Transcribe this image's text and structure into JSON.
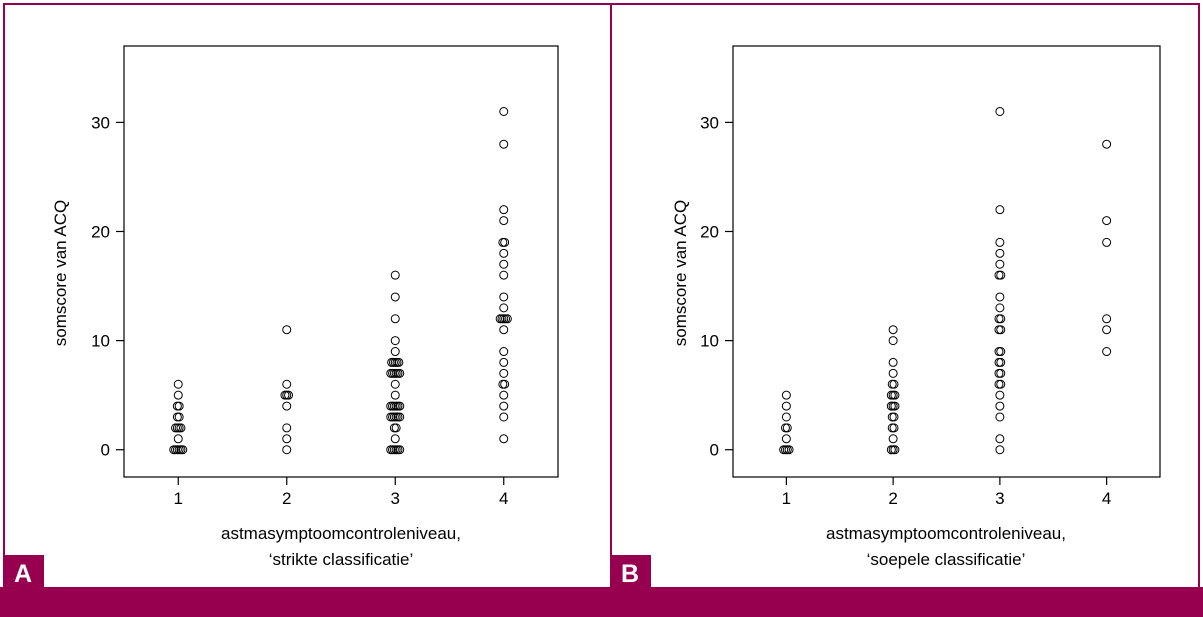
{
  "theme": {
    "accent": "#96004f",
    "ink": "#000000",
    "background": "#ffffff"
  },
  "panels": [
    {
      "badge": "A",
      "xlabel_line1": "astmasymptoomcontroleniveau,",
      "xlabel_line2": "‘strikte classificatie’",
      "ylabel": "somscore van ACQ"
    },
    {
      "badge": "B",
      "xlabel_line1": "astmasymptoomcontroleniveau,",
      "xlabel_line2": "‘soepele classificatie’",
      "ylabel": "somscore van ACQ"
    }
  ],
  "chart_data": [
    {
      "type": "scatter",
      "title": "",
      "xlabel": "astmasymptoomcontroleniveau, ‘strikte classificatie’",
      "ylabel": "somscore van ACQ",
      "x_ticks": [
        "1",
        "2",
        "3",
        "4"
      ],
      "y_ticks": [
        "0",
        "10",
        "20",
        "30"
      ],
      "xlim": [
        0.5,
        4.5
      ],
      "ylim": [
        -2.5,
        37
      ],
      "grid": false,
      "points": [
        {
          "x": 1,
          "y": 0
        },
        {
          "x": 1,
          "y": 0
        },
        {
          "x": 1,
          "y": 0
        },
        {
          "x": 1,
          "y": 0
        },
        {
          "x": 1,
          "y": 0
        },
        {
          "x": 1,
          "y": 0
        },
        {
          "x": 1,
          "y": 1
        },
        {
          "x": 1,
          "y": 2
        },
        {
          "x": 1,
          "y": 2
        },
        {
          "x": 1,
          "y": 2
        },
        {
          "x": 1,
          "y": 2
        },
        {
          "x": 1,
          "y": 3
        },
        {
          "x": 1,
          "y": 3
        },
        {
          "x": 1,
          "y": 4
        },
        {
          "x": 1,
          "y": 4
        },
        {
          "x": 1,
          "y": 5
        },
        {
          "x": 1,
          "y": 6
        },
        {
          "x": 2,
          "y": 0
        },
        {
          "x": 2,
          "y": 1
        },
        {
          "x": 2,
          "y": 2
        },
        {
          "x": 2,
          "y": 4
        },
        {
          "x": 2,
          "y": 5
        },
        {
          "x": 2,
          "y": 5
        },
        {
          "x": 2,
          "y": 5
        },
        {
          "x": 2,
          "y": 6
        },
        {
          "x": 2,
          "y": 11
        },
        {
          "x": 3,
          "y": 0
        },
        {
          "x": 3,
          "y": 0
        },
        {
          "x": 3,
          "y": 0
        },
        {
          "x": 3,
          "y": 0
        },
        {
          "x": 3,
          "y": 0
        },
        {
          "x": 3,
          "y": 0
        },
        {
          "x": 3,
          "y": 1
        },
        {
          "x": 3,
          "y": 2
        },
        {
          "x": 3,
          "y": 2
        },
        {
          "x": 3,
          "y": 3
        },
        {
          "x": 3,
          "y": 3
        },
        {
          "x": 3,
          "y": 3
        },
        {
          "x": 3,
          "y": 3
        },
        {
          "x": 3,
          "y": 3
        },
        {
          "x": 3,
          "y": 3
        },
        {
          "x": 3,
          "y": 4
        },
        {
          "x": 3,
          "y": 4
        },
        {
          "x": 3,
          "y": 4
        },
        {
          "x": 3,
          "y": 4
        },
        {
          "x": 3,
          "y": 4
        },
        {
          "x": 3,
          "y": 4
        },
        {
          "x": 3,
          "y": 5
        },
        {
          "x": 3,
          "y": 6
        },
        {
          "x": 3,
          "y": 7
        },
        {
          "x": 3,
          "y": 7
        },
        {
          "x": 3,
          "y": 7
        },
        {
          "x": 3,
          "y": 7
        },
        {
          "x": 3,
          "y": 7
        },
        {
          "x": 3,
          "y": 7
        },
        {
          "x": 3,
          "y": 8
        },
        {
          "x": 3,
          "y": 8
        },
        {
          "x": 3,
          "y": 8
        },
        {
          "x": 3,
          "y": 8
        },
        {
          "x": 3,
          "y": 8
        },
        {
          "x": 3,
          "y": 9
        },
        {
          "x": 3,
          "y": 10
        },
        {
          "x": 3,
          "y": 12
        },
        {
          "x": 3,
          "y": 14
        },
        {
          "x": 3,
          "y": 16
        },
        {
          "x": 4,
          "y": 1
        },
        {
          "x": 4,
          "y": 3
        },
        {
          "x": 4,
          "y": 4
        },
        {
          "x": 4,
          "y": 5
        },
        {
          "x": 4,
          "y": 6
        },
        {
          "x": 4,
          "y": 6
        },
        {
          "x": 4,
          "y": 7
        },
        {
          "x": 4,
          "y": 8
        },
        {
          "x": 4,
          "y": 9
        },
        {
          "x": 4,
          "y": 11
        },
        {
          "x": 4,
          "y": 12
        },
        {
          "x": 4,
          "y": 12
        },
        {
          "x": 4,
          "y": 12
        },
        {
          "x": 4,
          "y": 12
        },
        {
          "x": 4,
          "y": 12
        },
        {
          "x": 4,
          "y": 13
        },
        {
          "x": 4,
          "y": 14
        },
        {
          "x": 4,
          "y": 16
        },
        {
          "x": 4,
          "y": 17
        },
        {
          "x": 4,
          "y": 18
        },
        {
          "x": 4,
          "y": 19
        },
        {
          "x": 4,
          "y": 19
        },
        {
          "x": 4,
          "y": 21
        },
        {
          "x": 4,
          "y": 22
        },
        {
          "x": 4,
          "y": 28
        },
        {
          "x": 4,
          "y": 31
        }
      ]
    },
    {
      "type": "scatter",
      "title": "",
      "xlabel": "astmasymptoomcontroleniveau, ‘soepele classificatie’",
      "ylabel": "somscore van ACQ",
      "x_ticks": [
        "1",
        "2",
        "3",
        "4"
      ],
      "y_ticks": [
        "0",
        "10",
        "20",
        "30"
      ],
      "xlim": [
        0.5,
        4.5
      ],
      "ylim": [
        -2.5,
        37
      ],
      "grid": false,
      "points": [
        {
          "x": 1,
          "y": 0
        },
        {
          "x": 1,
          "y": 0
        },
        {
          "x": 1,
          "y": 0
        },
        {
          "x": 1,
          "y": 0
        },
        {
          "x": 1,
          "y": 1
        },
        {
          "x": 1,
          "y": 2
        },
        {
          "x": 1,
          "y": 2
        },
        {
          "x": 1,
          "y": 3
        },
        {
          "x": 1,
          "y": 4
        },
        {
          "x": 1,
          "y": 5
        },
        {
          "x": 2,
          "y": 0
        },
        {
          "x": 2,
          "y": 0
        },
        {
          "x": 2,
          "y": 0
        },
        {
          "x": 2,
          "y": 1
        },
        {
          "x": 2,
          "y": 2
        },
        {
          "x": 2,
          "y": 2
        },
        {
          "x": 2,
          "y": 3
        },
        {
          "x": 2,
          "y": 3
        },
        {
          "x": 2,
          "y": 4
        },
        {
          "x": 2,
          "y": 4
        },
        {
          "x": 2,
          "y": 4
        },
        {
          "x": 2,
          "y": 5
        },
        {
          "x": 2,
          "y": 5
        },
        {
          "x": 2,
          "y": 5
        },
        {
          "x": 2,
          "y": 6
        },
        {
          "x": 2,
          "y": 6
        },
        {
          "x": 2,
          "y": 7
        },
        {
          "x": 2,
          "y": 8
        },
        {
          "x": 2,
          "y": 10
        },
        {
          "x": 2,
          "y": 11
        },
        {
          "x": 3,
          "y": 0
        },
        {
          "x": 3,
          "y": 1
        },
        {
          "x": 3,
          "y": 3
        },
        {
          "x": 3,
          "y": 4
        },
        {
          "x": 3,
          "y": 5
        },
        {
          "x": 3,
          "y": 6
        },
        {
          "x": 3,
          "y": 6
        },
        {
          "x": 3,
          "y": 7
        },
        {
          "x": 3,
          "y": 7
        },
        {
          "x": 3,
          "y": 8
        },
        {
          "x": 3,
          "y": 8
        },
        {
          "x": 3,
          "y": 9
        },
        {
          "x": 3,
          "y": 9
        },
        {
          "x": 3,
          "y": 11
        },
        {
          "x": 3,
          "y": 11
        },
        {
          "x": 3,
          "y": 12
        },
        {
          "x": 3,
          "y": 12
        },
        {
          "x": 3,
          "y": 13
        },
        {
          "x": 3,
          "y": 14
        },
        {
          "x": 3,
          "y": 16
        },
        {
          "x": 3,
          "y": 16
        },
        {
          "x": 3,
          "y": 17
        },
        {
          "x": 3,
          "y": 18
        },
        {
          "x": 3,
          "y": 19
        },
        {
          "x": 3,
          "y": 22
        },
        {
          "x": 3,
          "y": 31
        },
        {
          "x": 4,
          "y": 9
        },
        {
          "x": 4,
          "y": 11
        },
        {
          "x": 4,
          "y": 12
        },
        {
          "x": 4,
          "y": 19
        },
        {
          "x": 4,
          "y": 21
        },
        {
          "x": 4,
          "y": 28
        }
      ]
    }
  ]
}
